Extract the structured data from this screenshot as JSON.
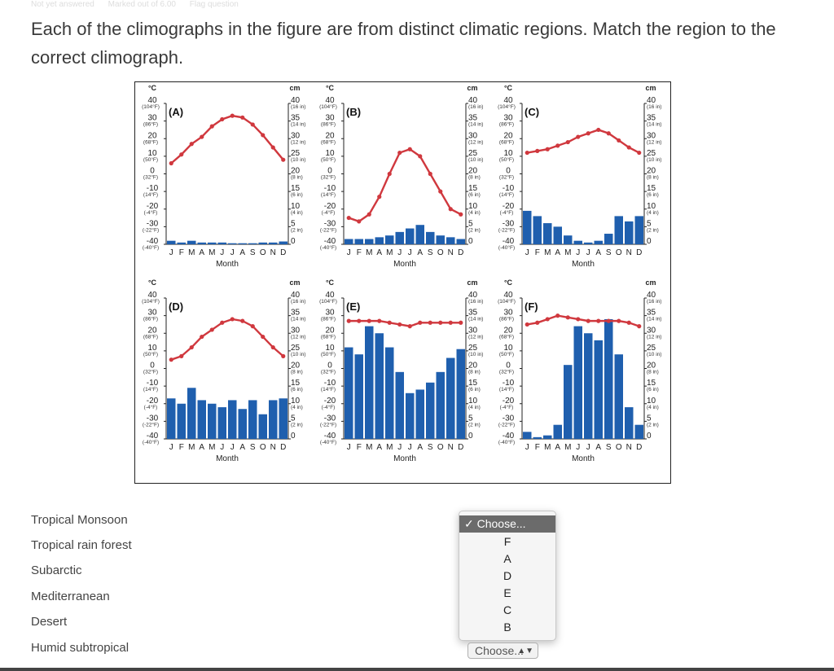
{
  "header": {
    "faded_items": [
      "Not yet answered",
      "Marked out of 6.00",
      "Flag question"
    ]
  },
  "question": {
    "text": "Each of the climographs in the figure are from distinct climatic regions. Match the region to the correct climograph."
  },
  "figure": {
    "axis": {
      "left_unit": "°C",
      "right_unit": "cm",
      "left_ticks": [
        {
          "c": "40",
          "f": "(104°F)"
        },
        {
          "c": "30",
          "f": "(86°F)"
        },
        {
          "c": "20",
          "f": "(68°F)"
        },
        {
          "c": "10",
          "f": "(50°F)"
        },
        {
          "c": "0",
          "f": "(32°F)"
        },
        {
          "c": "-10",
          "f": "(14°F)"
        },
        {
          "c": "-20",
          "f": "(-4°F)"
        },
        {
          "c": "-30",
          "f": "(-22°F)"
        },
        {
          "c": "-40",
          "f": "(-40°F)"
        }
      ],
      "right_ticks": [
        {
          "cm": "40",
          "in": "(16 in)"
        },
        {
          "cm": "35",
          "in": "(14 in)"
        },
        {
          "cm": "30",
          "in": "(12 in)"
        },
        {
          "cm": "25",
          "in": "(10 in)"
        },
        {
          "cm": "20",
          "in": "(8 in)"
        },
        {
          "cm": "15",
          "in": "(6 in)"
        },
        {
          "cm": "10",
          "in": "(4 in)"
        },
        {
          "cm": "5",
          "in": "(2 in)"
        },
        {
          "cm": "0",
          "in": ""
        }
      ],
      "months": [
        "J",
        "F",
        "M",
        "A",
        "M",
        "J",
        "J",
        "A",
        "S",
        "O",
        "N",
        "D"
      ],
      "xlabel": "Month",
      "temp_range": [
        -40,
        40
      ],
      "precip_range": [
        0,
        40
      ]
    },
    "colors": {
      "temperature": "#d0383e",
      "precipitation": "#1f5fae"
    },
    "chart_data": [
      {
        "type": "bar",
        "label": "(A)",
        "categories": [
          "J",
          "F",
          "M",
          "A",
          "M",
          "J",
          "J",
          "A",
          "S",
          "O",
          "N",
          "D"
        ],
        "series": [
          {
            "kind": "temperature_line",
            "values": [
              6,
              11,
              17,
              21,
              27,
              31,
              33,
              32,
              28,
              22,
              15,
              8
            ]
          },
          {
            "kind": "precipitation_bars",
            "values": [
              1,
              0.5,
              1,
              0.5,
              0.5,
              0.5,
              0.3,
              0.3,
              0.3,
              0.5,
              0.5,
              0.8
            ]
          }
        ]
      },
      {
        "type": "bar",
        "label": "(B)",
        "categories": [
          "J",
          "F",
          "M",
          "A",
          "M",
          "J",
          "J",
          "A",
          "S",
          "O",
          "N",
          "D"
        ],
        "series": [
          {
            "kind": "temperature_line",
            "values": [
              -25,
              -27,
              -23,
              -13,
              0,
              12,
              14,
              10,
              0,
              -10,
              -20,
              -23
            ]
          },
          {
            "kind": "precipitation_bars",
            "values": [
              1.5,
              1.5,
              1.5,
              2,
              2.5,
              3.5,
              4.5,
              5.5,
              3.5,
              2.5,
              2,
              1.5
            ]
          }
        ]
      },
      {
        "type": "bar",
        "label": "(C)",
        "categories": [
          "J",
          "F",
          "M",
          "A",
          "M",
          "J",
          "J",
          "A",
          "S",
          "O",
          "N",
          "D"
        ],
        "series": [
          {
            "kind": "temperature_line",
            "values": [
              12,
              13,
              14,
              16,
              18,
              21,
              23,
              25,
              23,
              19,
              15,
              12
            ]
          },
          {
            "kind": "precipitation_bars",
            "values": [
              9.5,
              8,
              6,
              5,
              2.5,
              1,
              0.5,
              1,
              3,
              8,
              6.5,
              8
            ]
          }
        ]
      },
      {
        "type": "bar",
        "label": "(D)",
        "categories": [
          "J",
          "F",
          "M",
          "A",
          "M",
          "J",
          "J",
          "A",
          "S",
          "O",
          "N",
          "D"
        ],
        "series": [
          {
            "kind": "temperature_line",
            "values": [
              5,
              7,
              12,
              18,
              22,
              26,
              28,
              27,
              24,
              18,
              12,
              7
            ]
          },
          {
            "kind": "precipitation_bars",
            "values": [
              11.5,
              10,
              14.5,
              11,
              10,
              9,
              11,
              8.5,
              11,
              7,
              11,
              11.5
            ]
          }
        ]
      },
      {
        "type": "bar",
        "label": "(E)",
        "categories": [
          "J",
          "F",
          "M",
          "A",
          "M",
          "J",
          "J",
          "A",
          "S",
          "O",
          "N",
          "D"
        ],
        "series": [
          {
            "kind": "temperature_line",
            "values": [
              27,
              27,
              27,
              27,
              26,
              25,
              24,
              26,
              26,
              26,
              26,
              26
            ]
          },
          {
            "kind": "precipitation_bars",
            "values": [
              26,
              24,
              32,
              30,
              26,
              19,
              13,
              14,
              16,
              19,
              23,
              25.5
            ]
          }
        ]
      },
      {
        "type": "bar",
        "label": "(F)",
        "categories": [
          "J",
          "F",
          "M",
          "A",
          "M",
          "J",
          "J",
          "A",
          "S",
          "O",
          "N",
          "D"
        ],
        "series": [
          {
            "kind": "temperature_line",
            "values": [
              25,
              26,
              28,
              30,
              29,
              28,
              27,
              27,
              27,
              27,
              26,
              24
            ]
          },
          {
            "kind": "precipitation_bars",
            "values": [
              2,
              0.5,
              1,
              4,
              21,
              32,
              30,
              28,
              34,
              24,
              9,
              4
            ]
          }
        ]
      }
    ]
  },
  "match_rows": [
    {
      "label": "Tropical Monsoon"
    },
    {
      "label": "Tropical rain forest"
    },
    {
      "label": "Subarctic"
    },
    {
      "label": "Mediterranean"
    },
    {
      "label": "Desert"
    },
    {
      "label": "Humid subtropical"
    }
  ],
  "dropdown": {
    "options": [
      "✓ Choose...",
      "F",
      "A",
      "D",
      "E",
      "C",
      "B"
    ],
    "selected_value": "Choose...",
    "arrows": "▲▼"
  }
}
